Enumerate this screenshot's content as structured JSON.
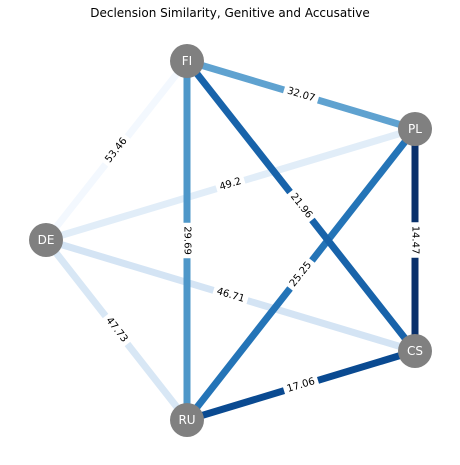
{
  "title": "Declension Similarity, Genitive and Accusative",
  "colors": {
    "node": "#808080",
    "node_text": "#ffffff",
    "background": "#ffffff"
  },
  "nodes": [
    {
      "id": "FI",
      "label": "FI"
    },
    {
      "id": "PL",
      "label": "PL"
    },
    {
      "id": "DE",
      "label": "DE"
    },
    {
      "id": "CS",
      "label": "CS"
    },
    {
      "id": "RU",
      "label": "RU"
    }
  ],
  "edges": [
    {
      "source": "FI",
      "target": "DE",
      "label": "53.46",
      "color": "#f3f8fe"
    },
    {
      "source": "DE",
      "target": "PL",
      "label": "49.2",
      "color": "#e1edf8"
    },
    {
      "source": "DE",
      "target": "RU",
      "label": "47.73",
      "color": "#d8e7f5"
    },
    {
      "source": "DE",
      "target": "CS",
      "label": "46.71",
      "color": "#d4e4f4"
    },
    {
      "source": "FI",
      "target": "PL",
      "label": "32.07",
      "color": "#5fa2d0"
    },
    {
      "source": "FI",
      "target": "RU",
      "label": "29.69",
      "color": "#4e97c9"
    },
    {
      "source": "PL",
      "target": "RU",
      "label": "25.25",
      "color": "#2474b7"
    },
    {
      "source": "FI",
      "target": "CS",
      "label": "21.96",
      "color": "#1863aa"
    },
    {
      "source": "RU",
      "target": "CS",
      "label": "17.06",
      "color": "#0a4a91"
    },
    {
      "source": "PL",
      "target": "CS",
      "label": "14.47",
      "color": "#08306b"
    }
  ]
}
